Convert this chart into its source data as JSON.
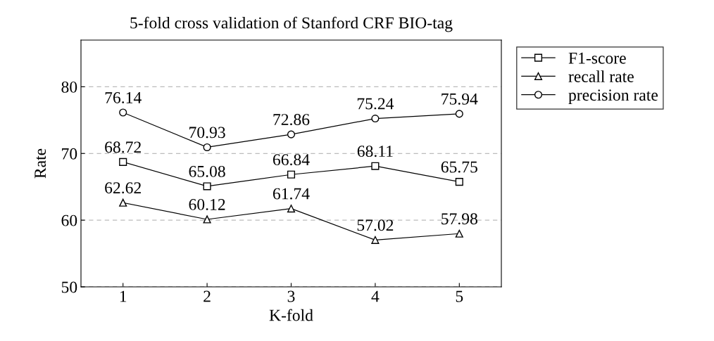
{
  "chart_data": {
    "type": "line",
    "title": "5-fold cross validation of Stanford CRF BIO-tag",
    "xlabel": "K-fold",
    "ylabel": "Rate",
    "x": [
      1,
      2,
      3,
      4,
      5
    ],
    "xlim": [
      0.5,
      5.5
    ],
    "xticks": [
      1,
      2,
      3,
      4,
      5
    ],
    "ylim": [
      50,
      87
    ],
    "yticks": [
      50,
      60,
      70,
      80
    ],
    "series": [
      {
        "name": "F1-score",
        "color": "#000000",
        "marker": "square",
        "values": [
          68.72,
          65.08,
          66.84,
          68.11,
          65.75
        ]
      },
      {
        "name": "recall rate",
        "color": "#000000",
        "marker": "triangle",
        "values": [
          62.62,
          60.12,
          61.74,
          57.02,
          57.98
        ]
      },
      {
        "name": "precision rate",
        "color": "#000000",
        "marker": "circle",
        "values": [
          76.14,
          70.93,
          72.86,
          75.24,
          75.94
        ]
      }
    ],
    "data_labels": true,
    "grid": "y",
    "legend": "top right",
    "line_style": "solid"
  }
}
